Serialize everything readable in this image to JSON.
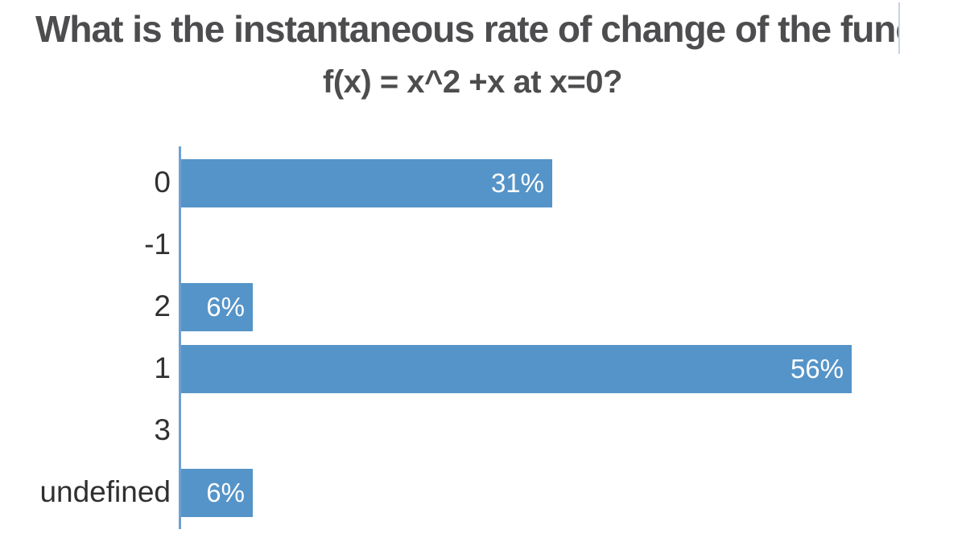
{
  "title": {
    "line1": "What is the instantaneous rate of change of the functi",
    "line2": "f(x) = x^2 +x at x=0?",
    "color": "#4d4d4f"
  },
  "chart_data": {
    "type": "bar",
    "orientation": "horizontal",
    "title_lines": [
      "What is the instantaneous rate of change of the functi",
      "f(x) = x^2 +x at x=0?"
    ],
    "categories": [
      "0",
      "-1",
      "2",
      "1",
      "3",
      "undefined"
    ],
    "values": [
      31,
      0,
      6,
      56,
      0,
      6
    ],
    "value_labels": [
      "31%",
      "",
      "6%",
      "56%",
      "",
      "6%"
    ],
    "unit": "percent",
    "grid": "off",
    "legend": "none",
    "colors": {
      "bar": "#5594c8",
      "axis": "#6fa1d2",
      "category_label": "#303030",
      "value_label": "#ffffff"
    }
  }
}
